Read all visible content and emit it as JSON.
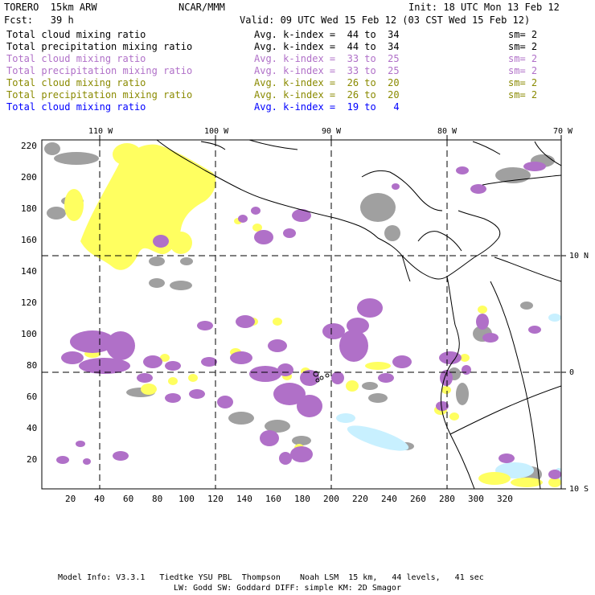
{
  "header": {
    "model": "TORERO  15km ARW",
    "org": "NCAR/MMM",
    "init": "Init: 18 UTC Mon 13 Feb 12",
    "fcst": "Fcst:   39 h",
    "valid": "Valid: 09 UTC Wed 15 Feb 12 (03 CST Wed 15 Feb 12)"
  },
  "legend": [
    {
      "field": "Total cloud mixing ratio",
      "kindex": "Avg. k-index =  44 to  34",
      "sm": "sm= 2",
      "color": "#000000"
    },
    {
      "field": "Total precipitation mixing ratio",
      "kindex": "Avg. k-index =  44 to  34",
      "sm": "sm= 2",
      "color": "#000000"
    },
    {
      "field": "Total cloud mixing ratio",
      "kindex": "Avg. k-index =  33 to  25",
      "sm": "sm= 2",
      "color": "#b070c8"
    },
    {
      "field": "Total precipitation mixing ratio",
      "kindex": "Avg. k-index =  33 to  25",
      "sm": "sm= 2",
      "color": "#b070c8"
    },
    {
      "field": "Total cloud mixing ratio",
      "kindex": "Avg. k-index =  26 to  20",
      "sm": "sm= 2",
      "color": "#8a8a00"
    },
    {
      "field": "Total precipitation mixing ratio",
      "kindex": "Avg. k-index =  26 to  20",
      "sm": "sm= 2",
      "color": "#8a8a00"
    },
    {
      "field": "Total cloud mixing ratio",
      "kindex": "Avg. k-index =  19 to   4",
      "sm": "",
      "color": "#0000ff"
    }
  ],
  "map": {
    "lon_labels": [
      "110 W",
      "100 W",
      "90 W",
      "80 W",
      "70 W"
    ],
    "lat_labels": [
      "10 N",
      "0",
      "10 S"
    ],
    "y_ticks": [
      "220",
      "200",
      "180",
      "160",
      "140",
      "120",
      "100",
      "80",
      "60",
      "40",
      "20"
    ],
    "x_ticks": [
      "20",
      "40",
      "60",
      "80",
      "100",
      "120",
      "140",
      "160",
      "180",
      "200",
      "220",
      "240",
      "260",
      "280",
      "300",
      "320"
    ],
    "colors": {
      "gray": "#a0a0a0",
      "purple": "#b070c8",
      "yellow": "#ffff60",
      "cyan": "#c8f0ff"
    }
  },
  "footer": {
    "line1": "Model Info: V3.3.1   Tiedtke YSU PBL  Thompson    Noah LSM  15 km,   44 levels,   41 sec",
    "line2": "LW: Godd SW: Goddard DIFF: simple KM: 2D Smagor"
  }
}
